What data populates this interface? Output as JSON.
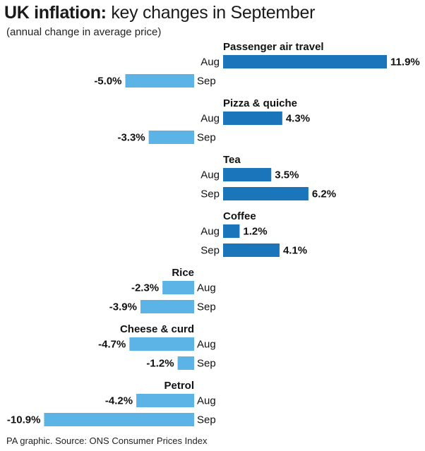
{
  "title_bold": "UK inflation:",
  "title_rest": " key changes in September",
  "subtitle": "(annual change in average price)",
  "source": "PA graphic. Source: ONS Consumer Prices Index",
  "colors": {
    "positive": "#1b75bb",
    "negative": "#5bb4e5"
  },
  "chart_data": {
    "type": "bar",
    "orientation": "horizontal",
    "unit": "%",
    "periods": [
      "Aug",
      "Sep"
    ],
    "categories": [
      {
        "name": "Passenger air travel",
        "values": [
          11.9,
          -5.0
        ],
        "labels": [
          "11.9%",
          "-5.0%"
        ]
      },
      {
        "name": "Pizza & quiche",
        "values": [
          4.3,
          -3.3
        ],
        "labels": [
          "4.3%",
          "-3.3%"
        ]
      },
      {
        "name": "Tea",
        "values": [
          3.5,
          6.2
        ],
        "labels": [
          "3.5%",
          "6.2%"
        ]
      },
      {
        "name": "Coffee",
        "values": [
          1.2,
          4.1
        ],
        "labels": [
          "1.2%",
          "4.1%"
        ]
      },
      {
        "name": "Rice",
        "values": [
          -2.3,
          -3.9
        ],
        "labels": [
          "-2.3%",
          "-3.9%"
        ]
      },
      {
        "name": "Cheese & curd",
        "values": [
          -4.7,
          -1.2
        ],
        "labels": [
          "-4.7%",
          "-1.2%"
        ]
      },
      {
        "name": "Petrol",
        "values": [
          -4.2,
          -10.9
        ],
        "labels": [
          "-4.2%",
          "-10.9%"
        ]
      }
    ]
  }
}
